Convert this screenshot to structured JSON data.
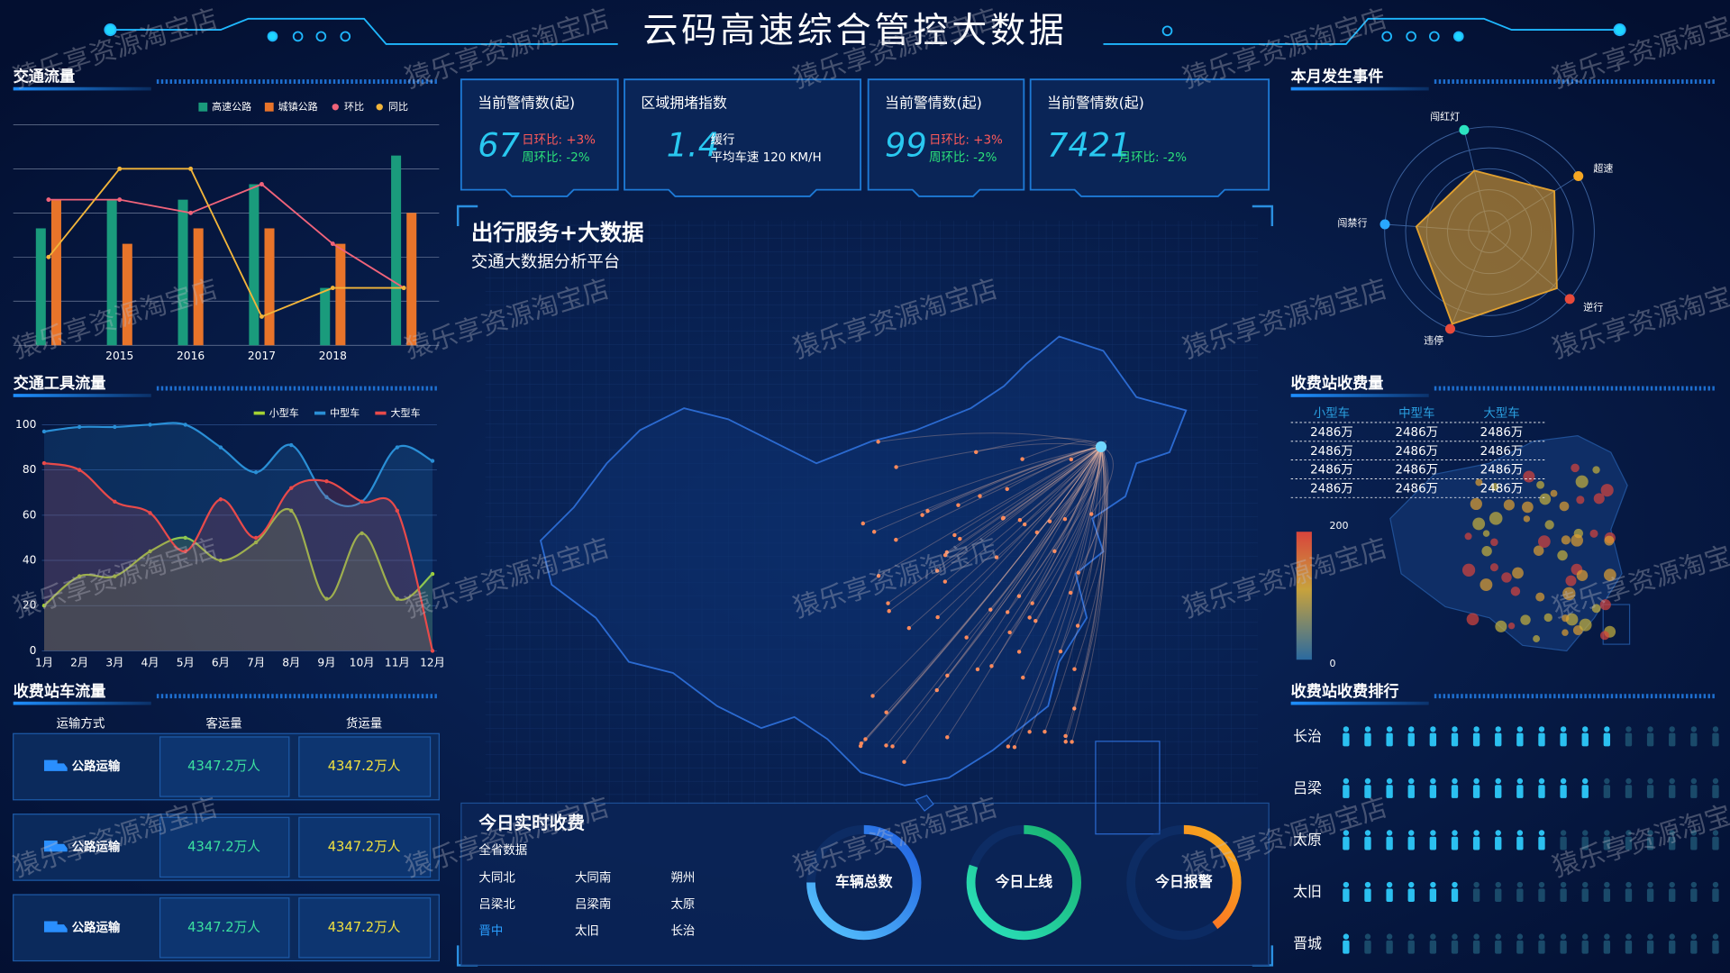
{
  "header": {
    "title": "云码高速综合管控大数据"
  },
  "watermark": "猿乐享资源淘宝店",
  "chart_data": [
    {
      "type": "bar",
      "title": "交通流量",
      "categories": [
        null,
        "2015",
        "2016",
        "2017",
        "2018",
        null
      ],
      "ylim": [
        0,
        100
      ],
      "series": [
        {
          "name": "高速公路",
          "type": "bar",
          "color": "#1a9b7c",
          "values": [
            53,
            66,
            66,
            73,
            26,
            86
          ]
        },
        {
          "name": "城镇公路",
          "type": "bar",
          "color": "#e8742a",
          "values": [
            66,
            46,
            53,
            53,
            46,
            60
          ]
        },
        {
          "name": "环比",
          "type": "line",
          "color": "#f0637a",
          "values": [
            66,
            66,
            60,
            73,
            46,
            26
          ]
        },
        {
          "name": "同比",
          "type": "line",
          "color": "#f2b53a",
          "values": [
            40,
            80,
            80,
            13,
            26,
            26
          ]
        }
      ]
    },
    {
      "type": "line",
      "title": "交通工具流量",
      "categories": [
        "1月",
        "2月",
        "3月",
        "4月",
        "5月",
        "6月",
        "7月",
        "8月",
        "9月",
        "10月",
        "11月",
        "12月"
      ],
      "ylim": [
        0,
        100
      ],
      "yticks": [
        0,
        20,
        40,
        60,
        80,
        100
      ],
      "grid": true,
      "smooth": true,
      "area": true,
      "series": [
        {
          "name": "小型车",
          "color": "#a4d233",
          "values": [
            20,
            33,
            33,
            44,
            50,
            40,
            48,
            62,
            23,
            52,
            23,
            34
          ]
        },
        {
          "name": "中型车",
          "color": "#2a8fd6",
          "values": [
            97,
            99,
            99,
            100,
            100,
            90,
            79,
            91,
            68,
            66,
            90,
            84
          ]
        },
        {
          "name": "大型车",
          "color": "#e84a4a",
          "values": [
            83,
            80,
            66,
            61,
            44,
            67,
            50,
            72,
            75,
            66,
            62,
            0
          ]
        }
      ]
    },
    {
      "type": "radar",
      "title": "本月发生事件",
      "categories": [
        "闯红灯",
        "超速",
        "逆行",
        "违停",
        "闯禁行"
      ],
      "values": [
        60,
        73,
        84,
        95,
        70
      ],
      "rlim": [
        0,
        100
      ],
      "color": "#e0a030"
    }
  ],
  "kpis": [
    {
      "label": "当前警情数(起)",
      "value": 67,
      "notes": [
        "日环比: +3%",
        "周环比: -2%"
      ]
    },
    {
      "label": "区域拥堵指数",
      "value": 1.4,
      "notes": [
        "缓行",
        "平均车速 120 KM/H"
      ]
    },
    {
      "label": "当前警情数(起)",
      "value": 99,
      "notes": [
        "日环比: +3%",
        "周环比: -2%"
      ]
    },
    {
      "label": "当前警情数(起)",
      "value": 7421,
      "notes": [
        "月环比: -2%"
      ]
    }
  ],
  "map_panel": {
    "title": "出行服务+大数据",
    "subtitle": "交通大数据分析平台"
  },
  "toll_flow": {
    "title": "收费站车流量",
    "columns": [
      "运输方式",
      "客运量",
      "货运量"
    ],
    "rows": [
      [
        "公路运输",
        "4347.2万人",
        "4347.2万人"
      ],
      [
        "公路运输",
        "4347.2万人",
        "4347.2万人"
      ],
      [
        "公路运输",
        "4347.2万人",
        "4347.2万人"
      ]
    ]
  },
  "toll_revenue": {
    "title": "收费站收费量",
    "columns": [
      "小型车",
      "中型车",
      "大型车"
    ],
    "rows": [
      [
        "2486万",
        "2486万",
        "2486万"
      ],
      [
        "2486万",
        "2486万",
        "2486万"
      ],
      [
        "2486万",
        "2486万",
        "2486万"
      ],
      [
        "2486万",
        "2486万",
        "2486万"
      ]
    ],
    "legend": {
      "max": 200,
      "min": 0
    }
  },
  "toll_ranking": {
    "title": "收费站收费排行",
    "stations": [
      "长治",
      "吕梁",
      "太原",
      "太旧",
      "晋城"
    ],
    "values": [
      13,
      12,
      10,
      6,
      1
    ],
    "xlim": [
      0,
      18
    ]
  },
  "realtime": {
    "title": "今日实时收费",
    "subtitle": "全省数据",
    "cities": [
      "大同北",
      "大同南",
      "朔州",
      "吕梁北",
      "吕梁南",
      "太原",
      "晋中",
      "太旧",
      "长治"
    ],
    "gauge_max": 100,
    "gauges": [
      {
        "label": "车辆总数",
        "value": 75
      },
      {
        "label": "今日上线",
        "value": 80
      },
      {
        "label": "今日报警",
        "value": 40
      }
    ]
  }
}
